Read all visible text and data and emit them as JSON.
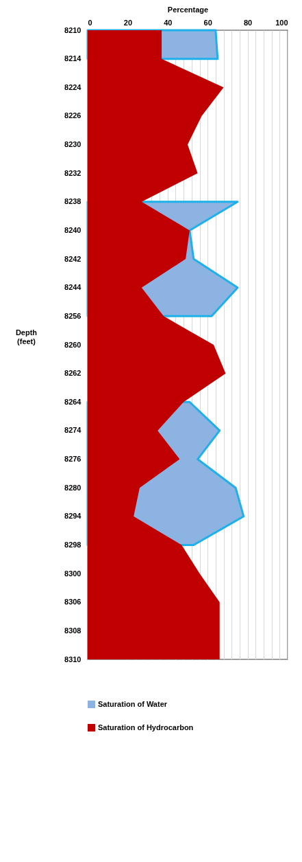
{
  "chart_data": {
    "type": "area",
    "orientation": "horizontal",
    "xlabel": "Percentage",
    "ylabel": "Depth (feet)",
    "categories": [
      "8210",
      "8214",
      "8224",
      "8226",
      "8230",
      "8232",
      "8238",
      "8240",
      "8242",
      "8244",
      "8256",
      "8260",
      "8262",
      "8264",
      "8274",
      "8276",
      "8280",
      "8294",
      "8298",
      "8300",
      "8306",
      "8308",
      "8310"
    ],
    "series": [
      {
        "name": "Saturation of Water",
        "color": "#8db3e2",
        "values": [
          64,
          65,
          null,
          null,
          null,
          null,
          75,
          51,
          53,
          75,
          62,
          null,
          null,
          51,
          66,
          55,
          74,
          78,
          53,
          null,
          null,
          null,
          null
        ]
      },
      {
        "name": "Saturation of Hydrocarbon",
        "color": "#c00000",
        "values": [
          37,
          37,
          68,
          57,
          50,
          55,
          27,
          51,
          49,
          27,
          38,
          63,
          69,
          48,
          35,
          46,
          26,
          23,
          47,
          56,
          66,
          66,
          66
        ]
      }
    ],
    "xlim": [
      0,
      100
    ],
    "xticks": [
      0,
      20,
      {
        "value": 24,
        "label": null
      },
      {
        "value": 28,
        "label": null
      },
      {
        "value": 32,
        "label": null
      },
      {
        "value": 36,
        "label": null
      },
      40,
      {
        "value": 44,
        "label": null
      },
      {
        "value": 48,
        "label": null
      },
      {
        "value": 52,
        "label": null
      },
      {
        "value": 56,
        "label": null
      },
      60,
      {
        "value": 64,
        "label": null
      },
      {
        "value": 68,
        "label": null
      },
      {
        "value": 72,
        "label": null
      },
      {
        "value": 76,
        "label": null
      },
      80,
      {
        "value": 84,
        "label": null
      },
      {
        "value": 88,
        "label": null
      },
      {
        "value": 92,
        "label": null
      },
      {
        "value": 96,
        "label": null
      },
      100
    ],
    "grid": "x",
    "legend": "bottom"
  }
}
